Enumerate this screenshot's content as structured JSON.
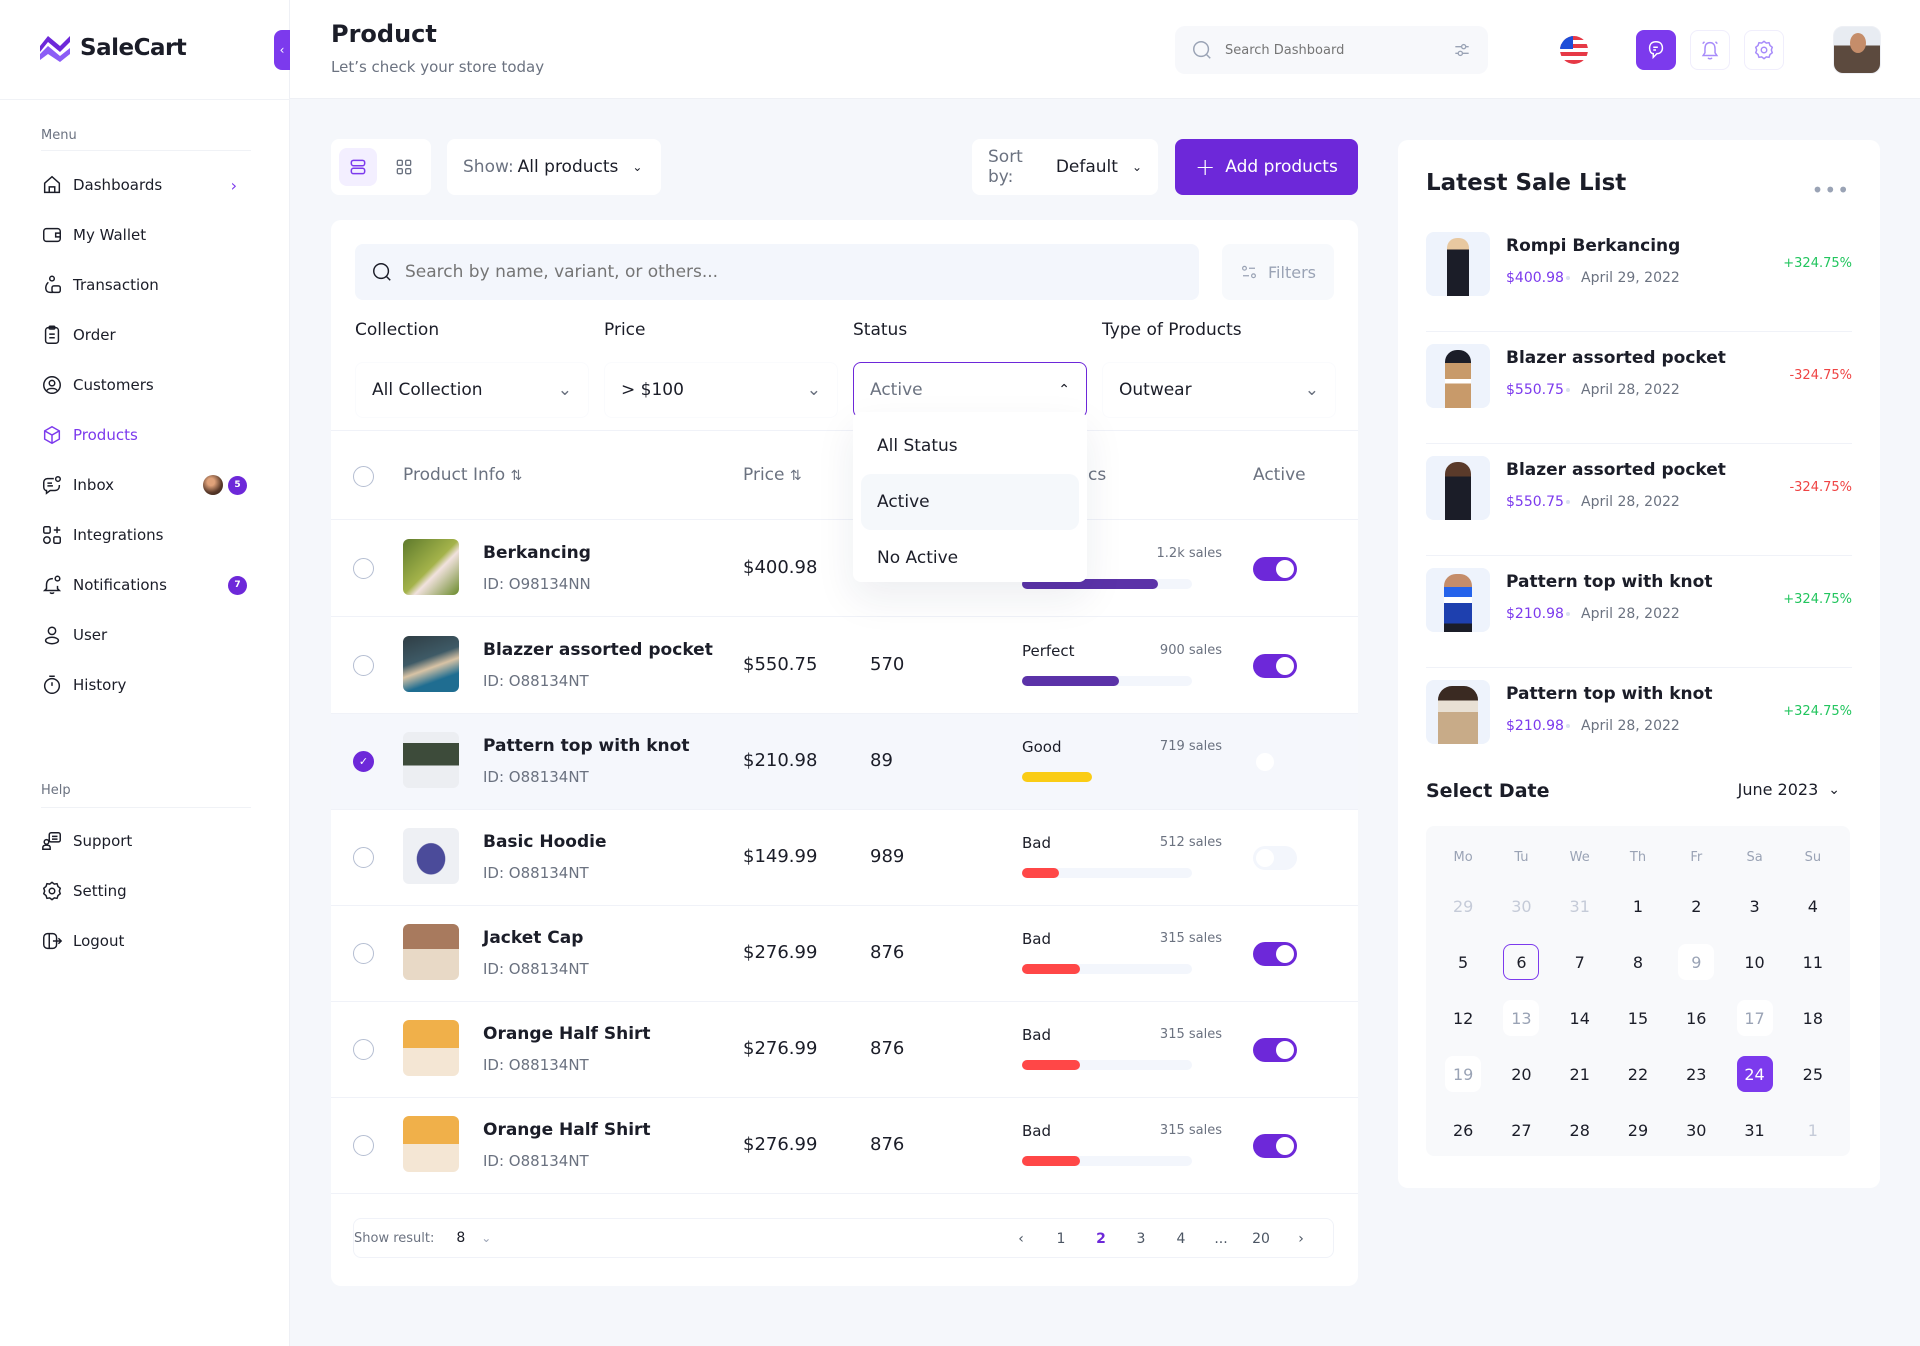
{
  "brand": {
    "name": "SaleCart",
    "accent": "#7c3aed"
  },
  "header": {
    "title": "Product",
    "subtitle": "Let’s check your store today",
    "search_placeholder": "Search Dashboard"
  },
  "sidebar": {
    "menu_label": "Menu",
    "items": [
      {
        "label": "Dashboards",
        "icon": "home-icon"
      },
      {
        "label": "My Wallet",
        "icon": "wallet-icon"
      },
      {
        "label": "Transaction",
        "icon": "money-bag-icon"
      },
      {
        "label": "Order",
        "icon": "clipboard-icon"
      },
      {
        "label": "Customers",
        "icon": "user-circle-icon"
      },
      {
        "label": "Products",
        "icon": "cube-icon",
        "active": true
      },
      {
        "label": "Inbox",
        "icon": "chat-icon",
        "badge": "5"
      },
      {
        "label": "Integrations",
        "icon": "grid-plus-icon"
      },
      {
        "label": "Notifications",
        "icon": "bell-icon",
        "badge": "7"
      },
      {
        "label": "User",
        "icon": "user-icon"
      },
      {
        "label": "History",
        "icon": "timer-icon"
      }
    ],
    "help_label": "Help",
    "help_items": [
      {
        "label": "Support",
        "icon": "support-icon"
      },
      {
        "label": "Setting",
        "icon": "gear-icon"
      },
      {
        "label": "Logout",
        "icon": "logout-icon"
      }
    ]
  },
  "toolbar": {
    "show_prefix": "Show:",
    "show_value": "All products",
    "sort_prefix": "Sort by:",
    "sort_value": "Default",
    "add_label": "Add products"
  },
  "search": {
    "placeholder": "Search by name, variant, or others...",
    "filters_label": "Filters"
  },
  "filters": [
    {
      "label": "Collection",
      "value": "All Collection"
    },
    {
      "label": "Price",
      "value": "> $100"
    },
    {
      "label": "Status",
      "value": "Active"
    },
    {
      "label": "Type of Products",
      "value": "Outwear"
    }
  ],
  "status_dropdown": {
    "options": [
      "All Status",
      "Active",
      "No Active"
    ],
    "highlighted": "Active"
  },
  "table": {
    "columns": {
      "product": "Product Info",
      "price": "Price",
      "stats_visible_fragment": "cs",
      "active": "Active"
    },
    "rows": [
      {
        "name": "Berkancing",
        "id": "ID: O98134NN",
        "price": "$400.98",
        "stock": "",
        "rating": "",
        "sales": "1.2k sales",
        "pct": 80,
        "color": "#5b32a8",
        "active": true,
        "checked": false
      },
      {
        "name": "Blazzer assorted pocket",
        "id": "ID: O88134NT",
        "price": "$550.75",
        "stock": "570",
        "rating": "Perfect",
        "sales": "900 sales",
        "pct": 57,
        "color": "#5b32a8",
        "active": true,
        "checked": false
      },
      {
        "name": "Pattern top with knot",
        "id": "ID: O88134NT",
        "price": "$210.98",
        "stock": "89",
        "rating": "Good",
        "sales": "719 sales",
        "pct": 41,
        "color": "#facc15",
        "active": false,
        "checked": true
      },
      {
        "name": "Basic Hoodie",
        "id": "ID: O88134NT",
        "price": "$149.99",
        "stock": "989",
        "rating": "Bad",
        "sales": "512 sales",
        "pct": 22,
        "color": "#ff4747",
        "active": false,
        "checked": false
      },
      {
        "name": "Jacket Cap",
        "id": "ID: O88134NT",
        "price": "$276.99",
        "stock": "876",
        "rating": "Bad",
        "sales": "315 sales",
        "pct": 34,
        "color": "#ff4747",
        "active": true,
        "checked": false
      },
      {
        "name": "Orange Half Shirt",
        "id": "ID: O88134NT",
        "price": "$276.99",
        "stock": "876",
        "rating": "Bad",
        "sales": "315 sales",
        "pct": 34,
        "color": "#ff4747",
        "active": true,
        "checked": false
      },
      {
        "name": "Orange Half Shirt",
        "id": "ID: O88134NT",
        "price": "$276.99",
        "stock": "876",
        "rating": "Bad",
        "sales": "315 sales",
        "pct": 34,
        "color": "#ff4747",
        "active": true,
        "checked": false
      }
    ]
  },
  "pagination": {
    "show_label": "Show result:",
    "per_page": "8",
    "pages": [
      "1",
      "2",
      "3",
      "4",
      "...",
      "20"
    ],
    "current": "2"
  },
  "latest_sales": {
    "title": "Latest Sale List",
    "items": [
      {
        "name": "Rompi Berkancing",
        "price": "$400.98",
        "date": "April 29, 2022",
        "change": "+324.75%",
        "positive": true
      },
      {
        "name": "Blazer assorted pocket",
        "price": "$550.75",
        "date": "April 28, 2022",
        "change": "-324.75%",
        "positive": false
      },
      {
        "name": "Blazer assorted pocket",
        "price": "$550.75",
        "date": "April 28, 2022",
        "change": "-324.75%",
        "positive": false
      },
      {
        "name": "Pattern top with knot",
        "price": "$210.98",
        "date": "April 28, 2022",
        "change": "+324.75%",
        "positive": true
      },
      {
        "name": "Pattern top with knot",
        "price": "$210.98",
        "date": "April 28, 2022",
        "change": "+324.75%",
        "positive": true
      }
    ]
  },
  "calendar": {
    "title": "Select Date",
    "month": "June 2023",
    "weekdays": [
      "Mo",
      "Tu",
      "We",
      "Th",
      "Fr",
      "Sa",
      "Su"
    ],
    "days": [
      {
        "d": "29",
        "s": "muted"
      },
      {
        "d": "30",
        "s": "muted"
      },
      {
        "d": "31",
        "s": "muted"
      },
      {
        "d": "1"
      },
      {
        "d": "2"
      },
      {
        "d": "3"
      },
      {
        "d": "4"
      },
      {
        "d": "5"
      },
      {
        "d": "6",
        "s": "outline"
      },
      {
        "d": "7"
      },
      {
        "d": "8"
      },
      {
        "d": "9",
        "s": "fade"
      },
      {
        "d": "10"
      },
      {
        "d": "11"
      },
      {
        "d": "12"
      },
      {
        "d": "13",
        "s": "fade"
      },
      {
        "d": "14"
      },
      {
        "d": "15"
      },
      {
        "d": "16"
      },
      {
        "d": "17",
        "s": "fade"
      },
      {
        "d": "18"
      },
      {
        "d": "19",
        "s": "fade"
      },
      {
        "d": "20"
      },
      {
        "d": "21"
      },
      {
        "d": "22"
      },
      {
        "d": "23"
      },
      {
        "d": "24",
        "s": "sel"
      },
      {
        "d": "25"
      },
      {
        "d": "26"
      },
      {
        "d": "27"
      },
      {
        "d": "28"
      },
      {
        "d": "29"
      },
      {
        "d": "30"
      },
      {
        "d": "31"
      },
      {
        "d": "1",
        "s": "muted"
      }
    ]
  }
}
